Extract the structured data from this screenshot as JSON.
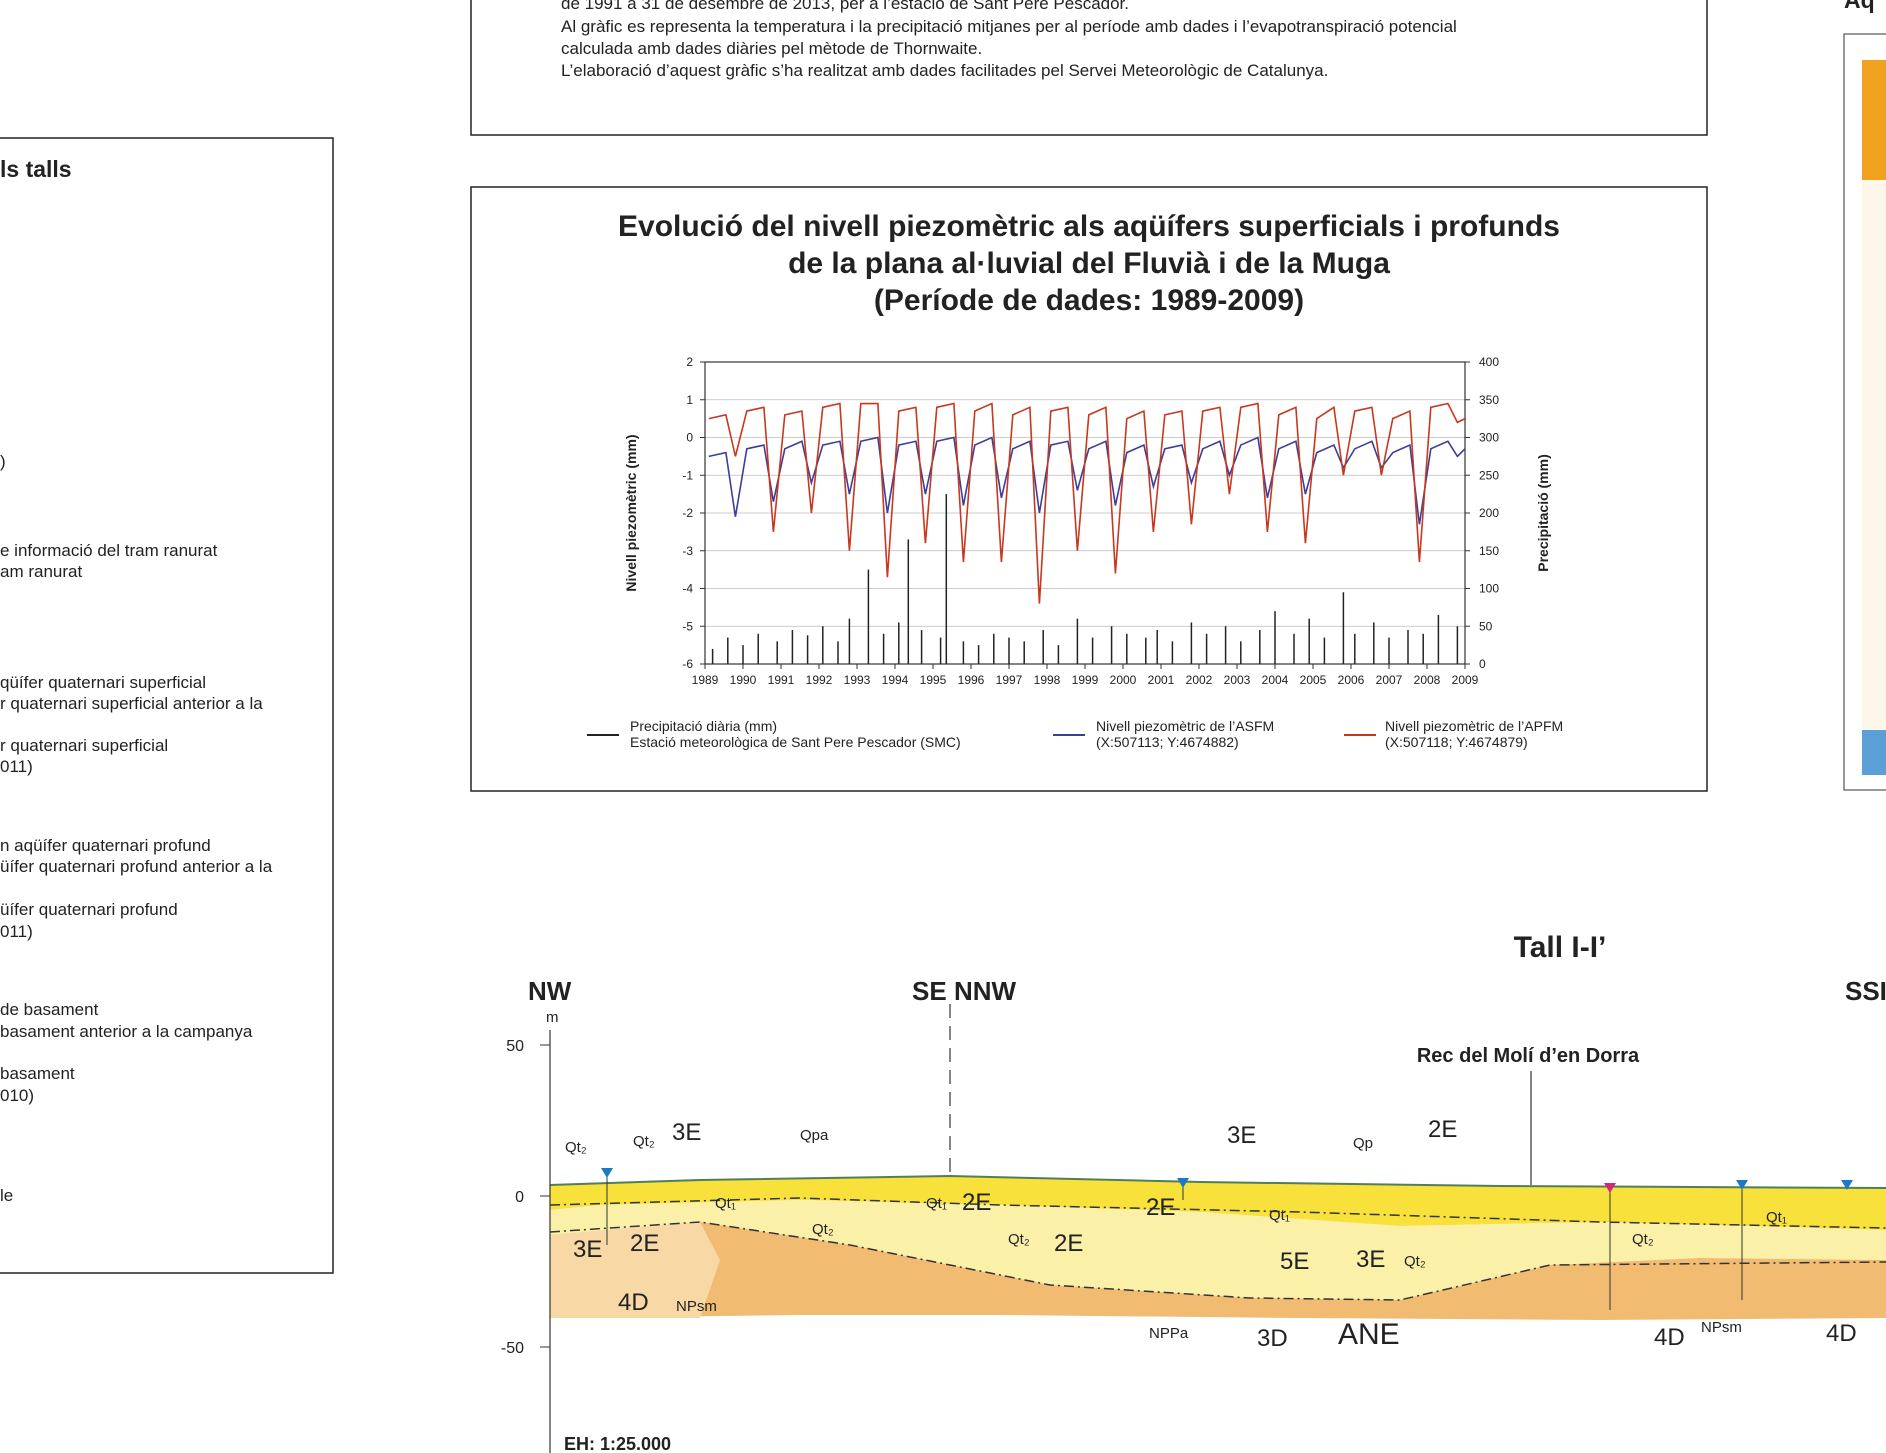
{
  "intro_text": {
    "lines": [
      "de 1991 a 31 de desembre de 2013, per a l’estació de Sant Pere Pescador.",
      "Al gràfic es representa la temperatura i la precipitació mitjanes per al període amb dades i l’evapotranspiració potencial",
      "calculada amb dades diàries pel mètode de Thornwaite.",
      "L’elaboració d’aquest gràfic s’ha realitzat amb dades facilitades pel Servei Meteorològic de Catalunya."
    ]
  },
  "legend_panel": {
    "title": "ls talls",
    "items": [
      ")",
      "e informació del tram ranurat",
      "am ranurat",
      "qüífer quaternari superficial",
      "r quaternari superficial anterior a la",
      "r quaternari superficial",
      "011)",
      "n aqüífer quaternari profund",
      "üífer quaternari profund anterior a la",
      "üífer quaternari profund",
      "011)",
      "de basament",
      "basament anterior a la campanya",
      "basament",
      "010)",
      "le"
    ]
  },
  "right_panel": {
    "title": "Aq"
  },
  "chart_data": {
    "type": "line",
    "title": [
      "Evolució del nivell piezomètric als aqüífers superficials i profunds",
      "de la plana al·luvial del Fluvià i de la Muga",
      "(Període de dades: 1989-2009)"
    ],
    "y_label": "Nivell piezomètric (mm)",
    "y2_label": "Precipitació (mm)",
    "xlim": [
      1989,
      2009
    ],
    "xticks": [
      1989,
      1990,
      1991,
      1992,
      1993,
      1994,
      1995,
      1996,
      1997,
      1998,
      1999,
      2000,
      2001,
      2002,
      2003,
      2004,
      2005,
      2006,
      2007,
      2008,
      2009
    ],
    "ylim": [
      -6,
      2
    ],
    "yticks": [
      -6,
      -5,
      -4,
      -3,
      -2,
      -1,
      0,
      1,
      2
    ],
    "y2lim": [
      0,
      400
    ],
    "y2ticks": [
      0,
      50,
      100,
      150,
      200,
      250,
      300,
      350,
      400
    ],
    "grid": true,
    "series": [
      {
        "name": "Precipitació diària (mm)",
        "subtitle": "Estació meteorològica de Sant Pere Pescador (SMC)",
        "color": "#222222",
        "axis": "y2",
        "style": "bar",
        "x": [
          1989.2,
          1989.6,
          1990.0,
          1990.4,
          1990.9,
          1991.3,
          1991.7,
          1992.1,
          1992.5,
          1992.8,
          1993.3,
          1993.7,
          1994.1,
          1994.35,
          1994.7,
          1995.2,
          1995.35,
          1995.8,
          1996.2,
          1996.6,
          1997.0,
          1997.4,
          1997.9,
          1998.3,
          1998.8,
          1999.2,
          1999.7,
          2000.1,
          2000.6,
          2000.9,
          2001.3,
          2001.8,
          2002.2,
          2002.7,
          2003.1,
          2003.6,
          2004.0,
          2004.5,
          2004.9,
          2005.3,
          2005.8,
          2006.1,
          2006.6,
          2007.0,
          2007.5,
          2007.9,
          2008.3,
          2008.8
        ],
        "values": [
          20,
          35,
          25,
          40,
          30,
          45,
          38,
          50,
          30,
          60,
          125,
          40,
          55,
          165,
          45,
          35,
          225,
          30,
          25,
          40,
          35,
          30,
          45,
          25,
          60,
          35,
          50,
          40,
          35,
          45,
          30,
          55,
          40,
          50,
          30,
          45,
          70,
          40,
          60,
          35,
          95,
          40,
          55,
          35,
          45,
          40,
          65,
          50
        ]
      },
      {
        "name": "Nivell piezomètric de l’ASFM",
        "subtitle": "(X:507113; Y:4674882)",
        "color": "#3b3f9a",
        "x": [
          1989.1,
          1989.55,
          1989.8,
          1990.1,
          1990.55,
          1990.8,
          1991.1,
          1991.55,
          1991.8,
          1992.1,
          1992.55,
          1992.8,
          1993.1,
          1993.55,
          1993.8,
          1994.1,
          1994.55,
          1994.8,
          1995.1,
          1995.55,
          1995.8,
          1996.1,
          1996.55,
          1996.8,
          1997.1,
          1997.55,
          1997.8,
          1998.1,
          1998.55,
          1998.8,
          1999.1,
          1999.55,
          1999.8,
          2000.1,
          2000.55,
          2000.8,
          2001.1,
          2001.55,
          2001.8,
          2002.1,
          2002.55,
          2002.8,
          2003.1,
          2003.55,
          2003.8,
          2004.1,
          2004.55,
          2004.8,
          2005.1,
          2005.55,
          2005.8,
          2006.1,
          2006.55,
          2006.8,
          2007.1,
          2007.55,
          2007.8,
          2008.1,
          2008.55,
          2008.8,
          2009.0
        ],
        "values": [
          -0.5,
          -0.4,
          -2.1,
          -0.3,
          -0.2,
          -1.7,
          -0.3,
          -0.1,
          -1.2,
          -0.2,
          -0.1,
          -1.5,
          -0.1,
          0,
          -2.0,
          -0.2,
          -0.1,
          -1.5,
          -0.1,
          0,
          -1.8,
          -0.2,
          0,
          -1.6,
          -0.3,
          -0.1,
          -2.0,
          -0.2,
          -0.1,
          -1.4,
          -0.3,
          -0.1,
          -1.8,
          -0.4,
          -0.2,
          -1.3,
          -0.3,
          -0.2,
          -1.2,
          -0.3,
          -0.1,
          -1.0,
          -0.2,
          0,
          -1.6,
          -0.3,
          -0.1,
          -1.5,
          -0.4,
          -0.2,
          -0.8,
          -0.3,
          -0.1,
          -0.8,
          -0.4,
          -0.2,
          -2.3,
          -0.3,
          -0.1,
          -0.5,
          -0.3
        ]
      },
      {
        "name": "Nivell piezomètric de l’APFM",
        "subtitle": "(X:507118; Y:4674879)",
        "color": "#c8381e",
        "x": [
          1989.1,
          1989.55,
          1989.8,
          1990.1,
          1990.55,
          1990.8,
          1991.1,
          1991.55,
          1991.8,
          1992.1,
          1992.55,
          1992.8,
          1993.1,
          1993.55,
          1993.8,
          1994.1,
          1994.55,
          1994.8,
          1995.1,
          1995.55,
          1995.8,
          1996.1,
          1996.55,
          1996.8,
          1997.1,
          1997.55,
          1997.8,
          1998.1,
          1998.55,
          1998.8,
          1999.1,
          1999.55,
          1999.8,
          2000.1,
          2000.55,
          2000.8,
          2001.1,
          2001.55,
          2001.8,
          2002.1,
          2002.55,
          2002.8,
          2003.1,
          2003.55,
          2003.8,
          2004.1,
          2004.55,
          2004.8,
          2005.1,
          2005.55,
          2005.8,
          2006.1,
          2006.55,
          2006.8,
          2007.1,
          2007.55,
          2007.8,
          2008.1,
          2008.55,
          2008.8,
          2009.0
        ],
        "values": [
          0.5,
          0.6,
          -0.5,
          0.7,
          0.8,
          -2.5,
          0.6,
          0.7,
          -2,
          0.8,
          0.9,
          -3,
          0.9,
          0.9,
          -3.7,
          0.7,
          0.8,
          -2.8,
          0.8,
          0.9,
          -3.3,
          0.7,
          0.9,
          -3.3,
          0.6,
          0.8,
          -4.4,
          0.7,
          0.8,
          -3,
          0.6,
          0.8,
          -3.6,
          0.5,
          0.7,
          -2.5,
          0.6,
          0.7,
          -2.3,
          0.7,
          0.8,
          -1.5,
          0.8,
          0.9,
          -2.5,
          0.6,
          0.8,
          -2.8,
          0.5,
          0.8,
          -1,
          0.7,
          0.8,
          -1,
          0.5,
          0.7,
          -3.3,
          0.8,
          0.9,
          0.4,
          0.5
        ]
      }
    ]
  },
  "section": {
    "title": "Tall I-I’",
    "edge_labels": [
      "NW",
      "SE",
      "NNW",
      "SSI"
    ],
    "unit": "m",
    "ticks": [
      50,
      0,
      -50
    ],
    "feature": "Rec del Molí d’en Dorra",
    "scale": "EH: 1:25.000",
    "units": [
      "Qt₂",
      "Qt₂",
      "3E",
      "Qpa",
      "Qt₁",
      "3E",
      "2E",
      "Qt₂",
      "Qt₁",
      "2E",
      "Qt₂",
      "2E",
      "3E",
      "Qp",
      "2E",
      "2E",
      "Qt₁",
      "5E",
      "3E",
      "Qt₂",
      "Qt₂",
      "Qt₁",
      "4D",
      "NPsm",
      "NPPa",
      "3D",
      "ANE",
      "4D",
      "NPsm",
      "4D"
    ]
  }
}
